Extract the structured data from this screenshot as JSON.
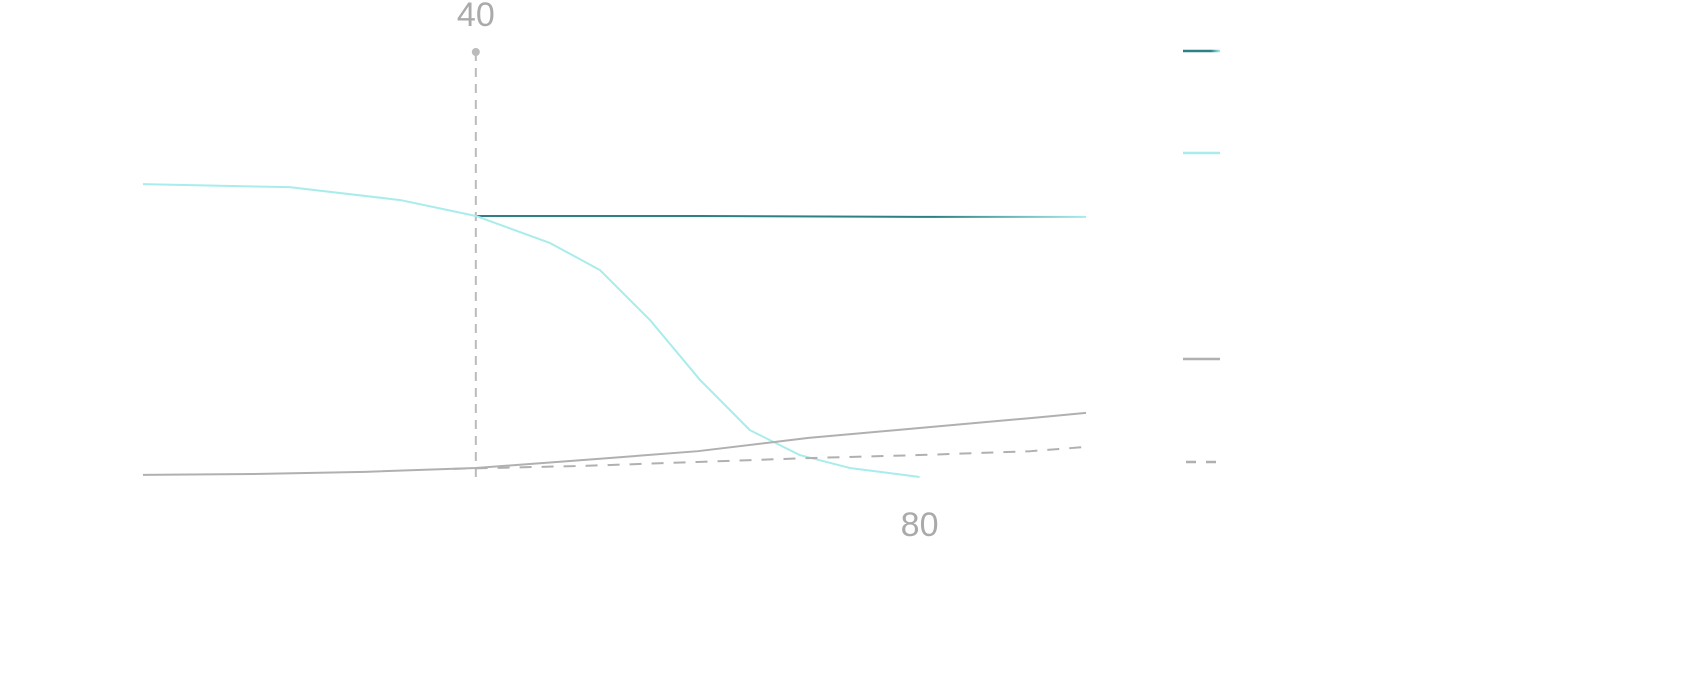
{
  "chart_data": {
    "type": "line",
    "xlim": [
      10,
      95
    ],
    "xticks": [
      40,
      80
    ],
    "ylim": [
      0,
      100
    ],
    "series": [
      {
        "color": "#2e7f86",
        "color_end": "#a8ecec",
        "dash": false,
        "x": [
          40,
          60,
          80,
          95
        ],
        "values": [
          61.4,
          61.4,
          61.2,
          61.2
        ]
      },
      {
        "color": "#a8ecec",
        "dash": false,
        "x": [
          10,
          23.2,
          33.2,
          40,
          46.7,
          51.2,
          55.7,
          60.2,
          64.7,
          69.2,
          73.7,
          80
        ],
        "values": [
          68.8,
          68.1,
          65.1,
          61.4,
          55.1,
          48.8,
          37.2,
          23.3,
          11.6,
          5.8,
          2.8,
          0.7
        ]
      },
      {
        "color": "#b0b0b0",
        "dash": false,
        "x": [
          10,
          20,
          30,
          40,
          50,
          60,
          70,
          80,
          90,
          95
        ],
        "values": [
          1.2,
          1.4,
          1.9,
          2.8,
          4.7,
          6.7,
          9.8,
          12.1,
          14.4,
          15.6
        ]
      },
      {
        "color": "#b0b0b0",
        "dash": true,
        "x": [
          38,
          50,
          60,
          70,
          80,
          90,
          95
        ],
        "values": [
          2.6,
          3.3,
          4.2,
          5.1,
          5.8,
          6.7,
          7.7
        ]
      }
    ]
  }
}
